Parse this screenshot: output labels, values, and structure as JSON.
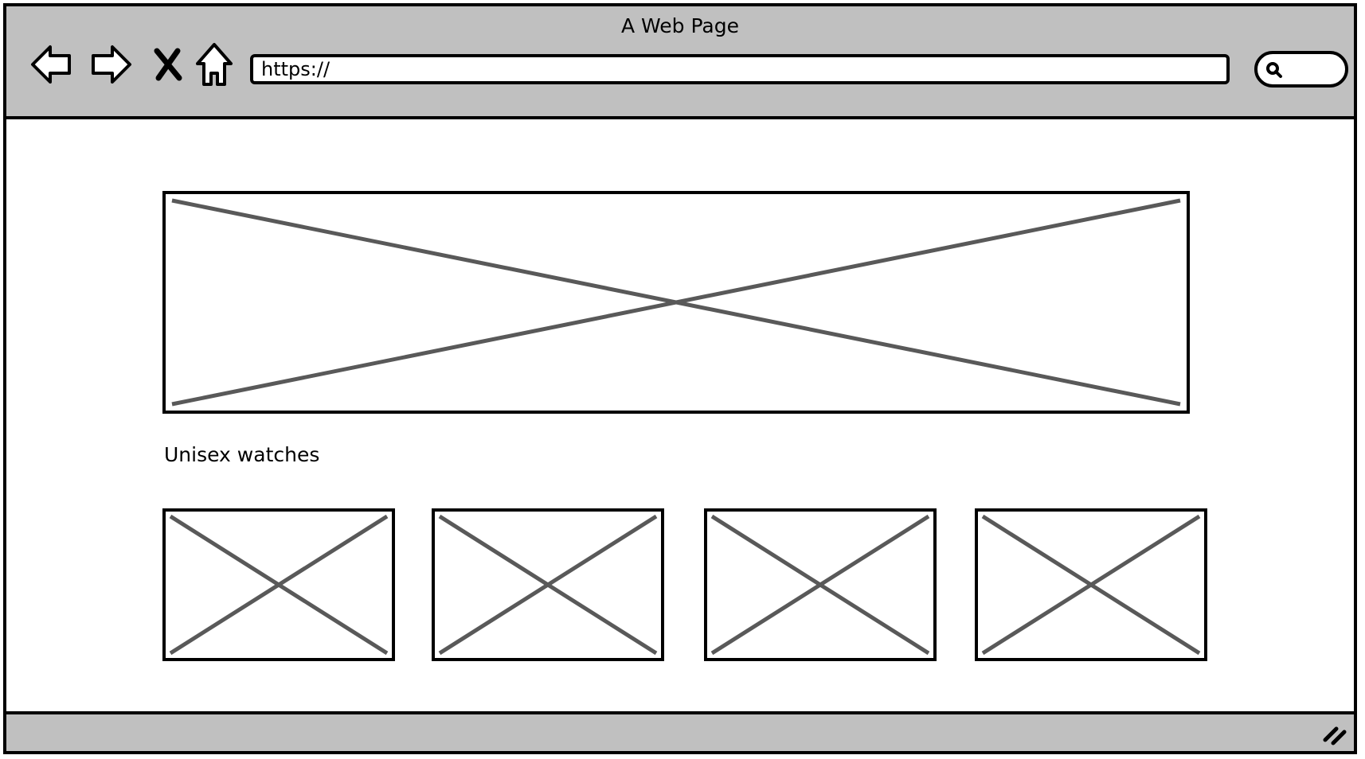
{
  "window": {
    "title": "A Web Page"
  },
  "toolbar": {
    "buttons": [
      {
        "name": "back-button",
        "icon": "arrow-left-icon"
      },
      {
        "name": "forward-button",
        "icon": "arrow-right-icon"
      },
      {
        "name": "stop-button",
        "icon": "close-icon"
      },
      {
        "name": "home-button",
        "icon": "home-icon"
      }
    ],
    "url_value": "https://",
    "search_icon": "search-icon"
  },
  "content": {
    "section_heading": "Unisex watches",
    "hero_image": "image-placeholder",
    "product_thumbnails": [
      "image-placeholder",
      "image-placeholder",
      "image-placeholder",
      "image-placeholder"
    ]
  },
  "colors": {
    "chrome": "#c0c0c0",
    "outline": "#000000",
    "placeholder_cross": "#595959",
    "background": "#ffffff"
  }
}
